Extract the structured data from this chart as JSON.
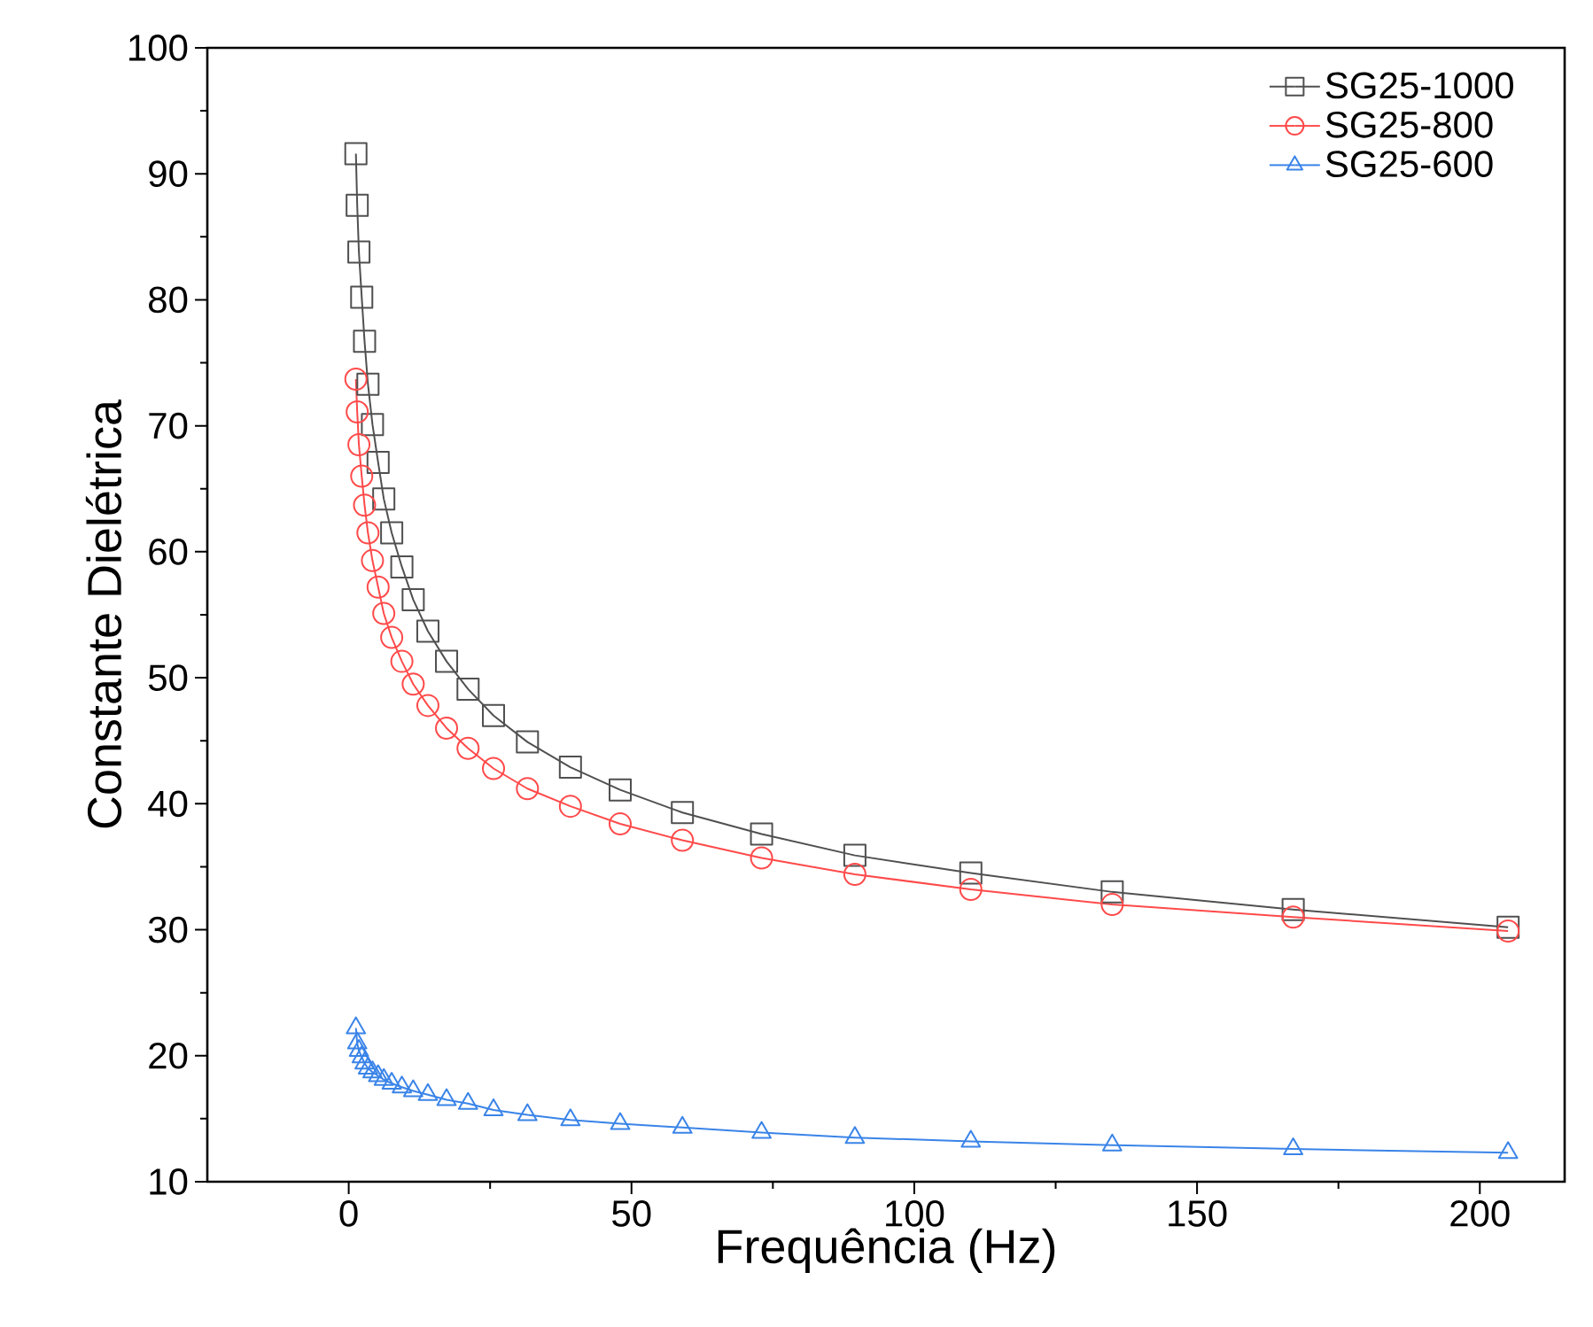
{
  "chart_data": {
    "type": "line",
    "xlabel": "Frequência (Hz)",
    "ylabel": "Constante Dielétrica",
    "x": [
      1.27,
      1.5,
      1.8,
      2.3,
      2.8,
      3.4,
      4.2,
      5.2,
      6.2,
      7.6,
      9.4,
      11.4,
      14,
      17.3,
      21.1,
      25.6,
      31.6,
      39.2,
      48,
      59,
      73,
      89.5,
      110,
      135,
      167,
      205
    ],
    "series": [
      {
        "name": "SG25-1000",
        "color": "#505050",
        "marker": "square",
        "values": [
          91.6,
          87.5,
          83.8,
          80.2,
          76.7,
          73.3,
          70.1,
          67.1,
          64.2,
          61.5,
          58.8,
          56.2,
          53.7,
          51.3,
          49.1,
          47.0,
          44.9,
          42.9,
          41.1,
          39.3,
          37.6,
          35.9,
          34.5,
          33.0,
          31.6,
          30.2
        ]
      },
      {
        "name": "SG25-800",
        "color": "#ff4a4a",
        "marker": "circle",
        "values": [
          73.7,
          71.1,
          68.5,
          66.0,
          63.7,
          61.5,
          59.3,
          57.2,
          55.1,
          53.2,
          51.3,
          49.5,
          47.8,
          46.0,
          44.4,
          42.8,
          41.2,
          39.8,
          38.4,
          37.1,
          35.7,
          34.4,
          33.2,
          32.0,
          31.0,
          29.9
        ]
      },
      {
        "name": "SG25-600",
        "color": "#3a84e8",
        "marker": "triangle",
        "values": [
          22.2,
          21.0,
          20.4,
          19.9,
          19.4,
          19.0,
          18.7,
          18.4,
          18.1,
          17.8,
          17.5,
          17.2,
          16.9,
          16.5,
          16.2,
          15.7,
          15.3,
          14.9,
          14.6,
          14.3,
          13.9,
          13.5,
          13.2,
          12.9,
          12.6,
          12.3
        ]
      }
    ],
    "xlim": [
      -25,
      215
    ],
    "ylim": [
      10,
      100
    ],
    "xticks": [
      0,
      50,
      100,
      150,
      200
    ],
    "yticks": [
      10,
      20,
      30,
      40,
      50,
      60,
      70,
      80,
      90,
      100
    ],
    "grid": false,
    "legend": "top right",
    "line_style": "solid"
  }
}
